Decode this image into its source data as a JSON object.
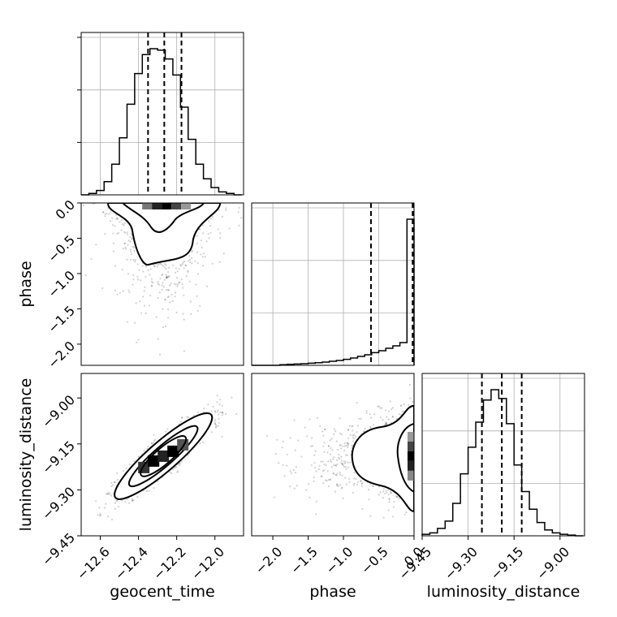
{
  "chart_data": {
    "type": "corner",
    "parameters": [
      "geocent_time",
      "phase",
      "luminosity_distance"
    ],
    "axis_labels": {
      "geocent_time": "geocent_time",
      "phase": "phase",
      "luminosity_distance": "luminosity_distance"
    },
    "ranges": {
      "geocent_time": [
        -12.7,
        -11.85
      ],
      "phase": [
        -2.3,
        0.0
      ],
      "luminosity_distance": [
        -9.45,
        -8.92
      ]
    },
    "ticks": {
      "geocent_time": [
        "−12.6",
        "−12.4",
        "−12.2",
        "−12.0"
      ],
      "phase": [
        "−2.0",
        "−1.5",
        "−1.0",
        "−0.5",
        "0.0"
      ],
      "luminosity_distance": [
        "−9.45",
        "−9.30",
        "−9.15",
        "−9.00"
      ]
    },
    "tick_values": {
      "geocent_time": [
        -12.6,
        -12.4,
        -12.2,
        -12.0
      ],
      "phase": [
        -2.0,
        -1.5,
        -1.0,
        -0.5,
        0.0
      ],
      "luminosity_distance": [
        -9.45,
        -9.3,
        -9.15,
        -9.0
      ]
    },
    "histograms": [
      {
        "parameter": "geocent_time",
        "bin_edges": [
          -12.7,
          -12.66,
          -12.62,
          -12.58,
          -12.54,
          -12.5,
          -12.46,
          -12.42,
          -12.38,
          -12.34,
          -12.3,
          -12.26,
          -12.22,
          -12.18,
          -12.14,
          -12.1,
          -12.06,
          -12.02,
          -11.98,
          -11.94,
          -11.9,
          -11.86
        ],
        "counts": [
          0.0,
          0.01,
          0.03,
          0.09,
          0.21,
          0.39,
          0.62,
          0.83,
          0.96,
          1.0,
          0.99,
          0.93,
          0.82,
          0.6,
          0.38,
          0.21,
          0.11,
          0.05,
          0.02,
          0.01,
          0.0
        ],
        "quantiles": [
          -12.35,
          -12.265,
          -12.175
        ]
      },
      {
        "parameter": "phase",
        "bin_edges": [
          -2.3,
          -2.2,
          -2.1,
          -2.0,
          -1.9,
          -1.8,
          -1.7,
          -1.6,
          -1.5,
          -1.4,
          -1.3,
          -1.2,
          -1.1,
          -1.0,
          -0.9,
          -0.8,
          -0.7,
          -0.6,
          -0.5,
          -0.4,
          -0.3,
          -0.2,
          -0.1,
          0.0
        ],
        "counts": [
          0.0,
          0.0,
          0.0,
          0.0,
          0.004,
          0.006,
          0.008,
          0.01,
          0.013,
          0.016,
          0.02,
          0.025,
          0.03,
          0.037,
          0.045,
          0.055,
          0.065,
          0.078,
          0.09,
          0.105,
          0.12,
          0.14,
          0.9
        ],
        "quantiles": [
          -0.61,
          -0.02,
          -0.005
        ]
      },
      {
        "parameter": "luminosity_distance",
        "bin_edges": [
          -9.45,
          -9.425,
          -9.4,
          -9.375,
          -9.35,
          -9.325,
          -9.3,
          -9.275,
          -9.25,
          -9.225,
          -9.2,
          -9.175,
          -9.15,
          -9.125,
          -9.1,
          -9.075,
          -9.05,
          -9.025,
          -9.0,
          -8.975,
          -8.95,
          -8.925
        ],
        "counts": [
          0.01,
          0.02,
          0.05,
          0.1,
          0.22,
          0.42,
          0.6,
          0.77,
          0.92,
          0.99,
          0.93,
          0.76,
          0.48,
          0.3,
          0.18,
          0.09,
          0.04,
          0.02,
          0.01,
          0.005,
          0.0
        ],
        "quantiles": [
          -9.255,
          -9.19,
          -9.125
        ]
      }
    ],
    "pairs": [
      {
        "x": "geocent_time",
        "y": "phase",
        "center": [
          -12.27,
          -0.05
        ],
        "spread": [
          0.12,
          0.45
        ],
        "correlation": 0.0
      },
      {
        "x": "geocent_time",
        "y": "luminosity_distance",
        "center": [
          -12.27,
          -9.19
        ],
        "spread": [
          0.12,
          0.065
        ],
        "correlation": 0.9
      },
      {
        "x": "phase",
        "y": "luminosity_distance",
        "center": [
          -0.05,
          -9.19
        ],
        "spread": [
          0.45,
          0.065
        ],
        "correlation": 0.0
      }
    ],
    "grid": true
  }
}
